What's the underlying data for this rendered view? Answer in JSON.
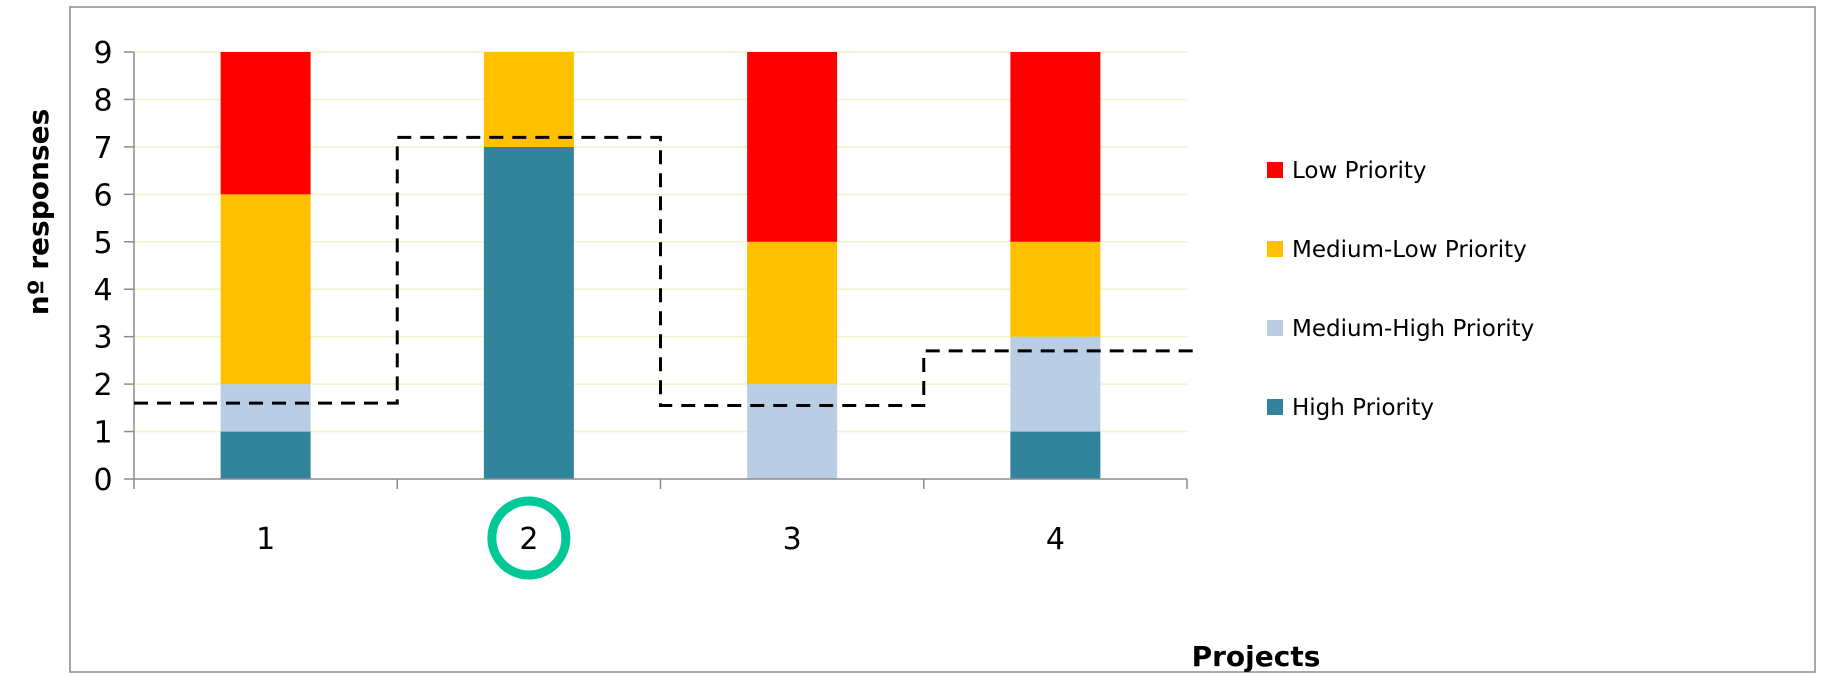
{
  "chart_data": {
    "type": "bar",
    "stacked": true,
    "categories": [
      "1",
      "2",
      "3",
      "4"
    ],
    "xlabel": "Projects",
    "ylabel": "nº responses",
    "ylim": [
      0,
      9
    ],
    "yticks": [
      0,
      1,
      2,
      3,
      4,
      5,
      6,
      7,
      8,
      9
    ],
    "grid": true,
    "legend_position": "right",
    "series": [
      {
        "name": "High Priority",
        "color": "#31849B",
        "values": [
          1,
          7,
          0,
          1
        ]
      },
      {
        "name": "Medium-High Priority",
        "color": "#B9CDE5",
        "values": [
          1,
          0,
          2,
          2
        ]
      },
      {
        "name": "Medium-Low Priority",
        "color": "#FFC000",
        "values": [
          4,
          2,
          3,
          2
        ]
      },
      {
        "name": "Low Priority",
        "color": "#FF0000",
        "values": [
          3,
          0,
          4,
          4
        ]
      }
    ],
    "legend_order": [
      "Low Priority",
      "Medium-Low Priority",
      "Medium-High Priority",
      "High Priority"
    ],
    "dashed_step_line": {
      "values": [
        1.6,
        7.2,
        1.55,
        2.7
      ],
      "color": "#000000"
    },
    "highlight": {
      "category": "2",
      "shape": "circle",
      "color": "#00C896"
    },
    "gridline_color": "#EEF5C8"
  }
}
